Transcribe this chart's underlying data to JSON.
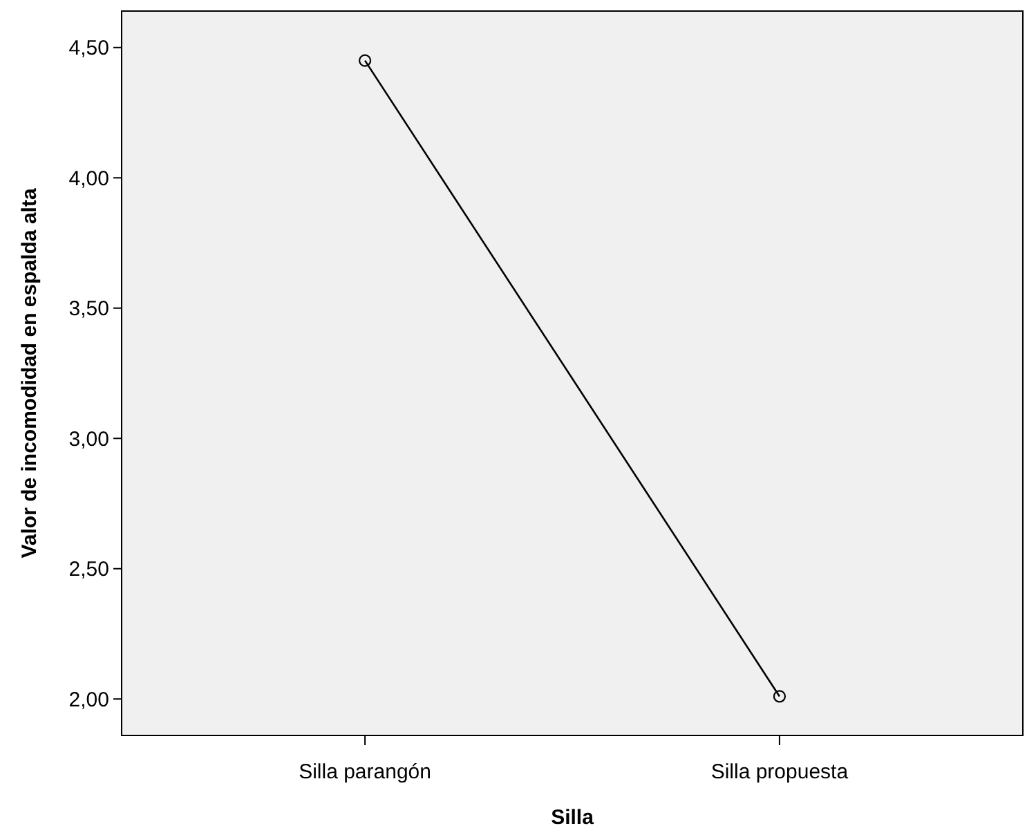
{
  "chart_data": {
    "type": "line",
    "xlabel": "Silla",
    "ylabel": "Valor de incomodidad en espalda alta",
    "categories": [
      "Silla parangón",
      "Silla propuesta"
    ],
    "series": [
      {
        "color": "#000000",
        "values": [
          4.45,
          2.01
        ]
      }
    ],
    "ylim": [
      1.86,
      4.64
    ],
    "yticks": [
      {
        "value": 2,
        "label": "2,00"
      },
      {
        "value": 2.5,
        "label": "2,50"
      },
      {
        "value": 3,
        "label": "3,00"
      },
      {
        "value": 3.5,
        "label": "3,50"
      },
      {
        "value": 4,
        "label": "4,00"
      },
      {
        "value": 4.5,
        "label": "4,50"
      }
    ],
    "grid": false,
    "marker": "circle",
    "line_style": "solid"
  }
}
